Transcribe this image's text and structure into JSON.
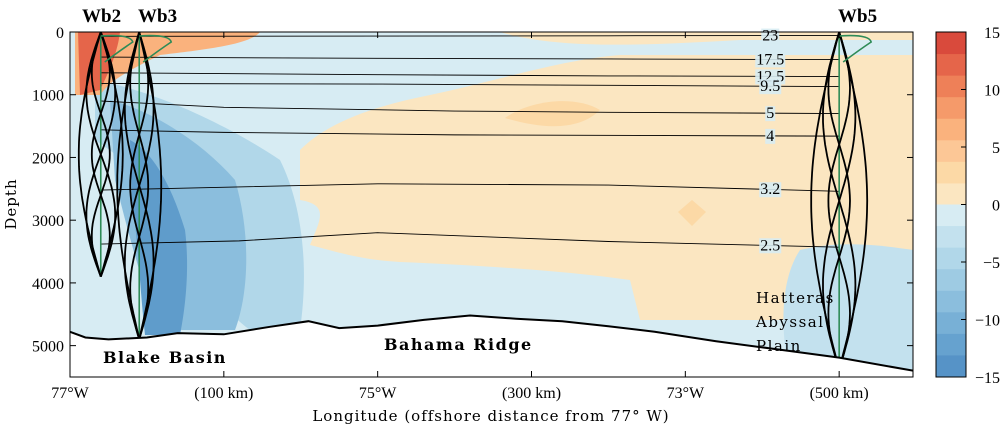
{
  "chart_data": {
    "type": "contour",
    "xlabel": "Longitude (offshore distance from 77° W)",
    "ylabel": "Depth",
    "x_range_km": [
      0,
      548
    ],
    "ylim": [
      0,
      5500
    ],
    "y_ticks": [
      0,
      1000,
      2000,
      3000,
      4000,
      5000
    ],
    "y_ticks_labels": [
      "0",
      "1000",
      "2000",
      "3000",
      "4000",
      "5000"
    ],
    "x_ticks": [
      {
        "km": 0,
        "label": "77°W"
      },
      {
        "km": 100,
        "label": "(100 km)"
      },
      {
        "km": 200,
        "label": "75°W"
      },
      {
        "km": 300,
        "label": "(300 km)"
      },
      {
        "km": 400,
        "label": "73°W"
      },
      {
        "km": 500,
        "label": "(500 km)"
      }
    ],
    "colorbar": {
      "range": [
        -15,
        15
      ],
      "ticks": [
        15,
        10,
        5,
        0,
        -5,
        -10,
        -15
      ],
      "tick_labels": [
        "15",
        "10",
        "5",
        "0",
        "−5",
        "−10",
        "−15"
      ],
      "colors_pos": [
        "#fbe6c1",
        "#fcd9a6",
        "#fcc796",
        "#fab27d",
        "#f59a6a",
        "#ee8058",
        "#e5654a",
        "#d94a3c"
      ],
      "colors_neg": [
        "#d7ecf3",
        "#c3e1ee",
        "#b1d7e9",
        "#9ecbe3",
        "#8bbedd",
        "#78b0d6",
        "#66a2cf",
        "#5693c7"
      ]
    },
    "stations": [
      {
        "name": "Wb2",
        "km": 20
      },
      {
        "name": "Wb3",
        "km": 45
      },
      {
        "name": "Wb5",
        "km": 500
      }
    ],
    "isotherms": [
      {
        "label": "23",
        "label_km": 450,
        "points": [
          [
            20,
            70
          ],
          [
            200,
            65
          ],
          [
            350,
            60
          ],
          [
            500,
            55
          ]
        ]
      },
      {
        "label": "17.5",
        "label_km": 450,
        "points": [
          [
            20,
            400
          ],
          [
            200,
            420
          ],
          [
            350,
            430
          ],
          [
            500,
            440
          ]
        ]
      },
      {
        "label": "12.5",
        "label_km": 450,
        "points": [
          [
            20,
            650
          ],
          [
            200,
            680
          ],
          [
            350,
            700
          ],
          [
            500,
            710
          ]
        ]
      },
      {
        "label": "9.5",
        "label_km": 450,
        "points": [
          [
            20,
            820
          ],
          [
            200,
            830
          ],
          [
            350,
            850
          ],
          [
            500,
            870
          ]
        ]
      },
      {
        "label": "5",
        "label_km": 450,
        "points": [
          [
            20,
            1100
          ],
          [
            100,
            1200
          ],
          [
            250,
            1260
          ],
          [
            350,
            1280
          ],
          [
            500,
            1300
          ]
        ]
      },
      {
        "label": "4",
        "label_km": 450,
        "points": [
          [
            20,
            1560
          ],
          [
            100,
            1600
          ],
          [
            250,
            1640
          ],
          [
            500,
            1660
          ]
        ]
      },
      {
        "label": "3.2",
        "label_km": 450,
        "points": [
          [
            20,
            2520
          ],
          [
            200,
            2420
          ],
          [
            350,
            2440
          ],
          [
            500,
            2540
          ]
        ]
      },
      {
        "label": "2.5",
        "label_km": 450,
        "points": [
          [
            20,
            3380
          ],
          [
            110,
            3330
          ],
          [
            200,
            3200
          ],
          [
            350,
            3340
          ],
          [
            500,
            3430
          ]
        ]
      }
    ],
    "bottom_profile": [
      [
        0,
        4780
      ],
      [
        10,
        4870
      ],
      [
        25,
        4900
      ],
      [
        50,
        4870
      ],
      [
        70,
        4800
      ],
      [
        100,
        4820
      ],
      [
        130,
        4700
      ],
      [
        155,
        4610
      ],
      [
        175,
        4720
      ],
      [
        200,
        4680
      ],
      [
        230,
        4590
      ],
      [
        260,
        4520
      ],
      [
        290,
        4570
      ],
      [
        320,
        4610
      ],
      [
        350,
        4690
      ],
      [
        380,
        4780
      ],
      [
        420,
        4930
      ],
      [
        460,
        5060
      ],
      [
        500,
        5190
      ],
      [
        548,
        5400
      ]
    ],
    "annotations": [
      {
        "text": "Blake Basin",
        "style": "bold"
      },
      {
        "text": "Bahama Ridge",
        "style": "bold"
      },
      {
        "text_lines": [
          "Hatteras",
          "Abyssal",
          "Plain"
        ],
        "style": "plain"
      }
    ],
    "grid": false
  }
}
